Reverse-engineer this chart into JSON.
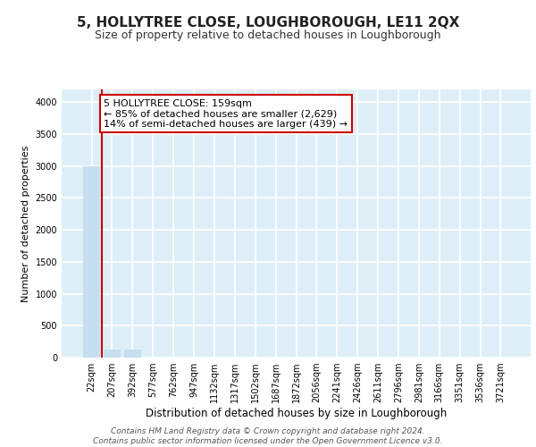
{
  "title": "5, HOLLYTREE CLOSE, LOUGHBOROUGH, LE11 2QX",
  "subtitle": "Size of property relative to detached houses in Loughborough",
  "xlabel": "Distribution of detached houses by size in Loughborough",
  "ylabel": "Number of detached properties",
  "bar_labels": [
    "22sqm",
    "207sqm",
    "392sqm",
    "577sqm",
    "762sqm",
    "947sqm",
    "1132sqm",
    "1317sqm",
    "1502sqm",
    "1687sqm",
    "1872sqm",
    "2056sqm",
    "2241sqm",
    "2426sqm",
    "2611sqm",
    "2796sqm",
    "2981sqm",
    "3166sqm",
    "3351sqm",
    "3536sqm",
    "3721sqm"
  ],
  "bar_values": [
    3000,
    130,
    120,
    0,
    0,
    0,
    0,
    0,
    0,
    0,
    0,
    0,
    0,
    0,
    0,
    0,
    0,
    0,
    0,
    0,
    0
  ],
  "bar_color": "#c5dff0",
  "annotation_text": "5 HOLLYTREE CLOSE: 159sqm\n← 85% of detached houses are smaller (2,629)\n14% of semi-detached houses are larger (439) →",
  "vline_color": "#cc0000",
  "vline_x_bar": 0.5,
  "ylim": [
    0,
    4200
  ],
  "yticks": [
    0,
    500,
    1000,
    1500,
    2000,
    2500,
    3000,
    3500,
    4000
  ],
  "footnote": "Contains HM Land Registry data © Crown copyright and database right 2024.\nContains public sector information licensed under the Open Government Licence v3.0.",
  "bg_color": "#deeef7",
  "grid_color": "#ffffff",
  "title_fontsize": 11,
  "subtitle_fontsize": 9,
  "xlabel_fontsize": 8.5,
  "ylabel_fontsize": 8,
  "tick_fontsize": 7,
  "footnote_fontsize": 6.5,
  "annot_fontsize": 8
}
